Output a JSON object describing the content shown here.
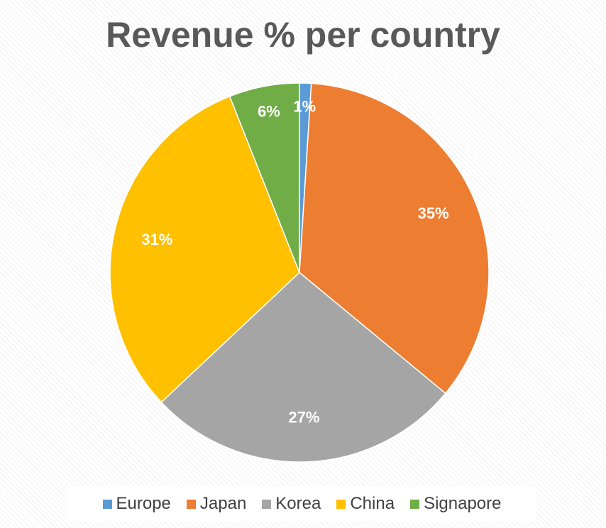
{
  "chart_data": {
    "type": "pie",
    "title": "Revenue % per country",
    "legend_position": "bottom",
    "series": [
      {
        "label": "Europe",
        "value": 1,
        "data_label": "1%",
        "color": "#5b9bd5"
      },
      {
        "label": "Japan",
        "value": 35,
        "data_label": "35%",
        "color": "#ed7d31"
      },
      {
        "label": "Korea",
        "value": 27,
        "data_label": "27%",
        "color": "#a5a5a5"
      },
      {
        "label": "China",
        "value": 31,
        "data_label": "31%",
        "color": "#ffc000"
      },
      {
        "label": "Signapore",
        "value": 6,
        "data_label": "6%",
        "color": "#70ad47"
      }
    ]
  }
}
